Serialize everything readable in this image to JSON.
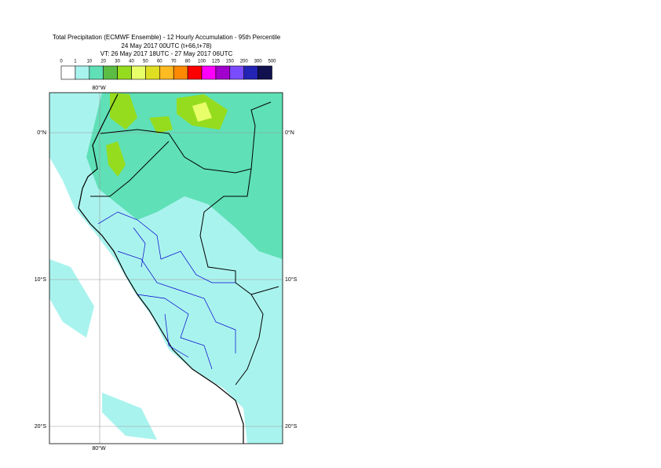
{
  "title": [
    "Total Precipitation (ECMWF Ensemble) - 12 Hourly Accumulation - 95th Percentile",
    "24 May 2017 00UTC (t+66,t+78)",
    "VT: 26 May 2017 18UTC - 27 May 2017 06UTC"
  ],
  "colorbar": {
    "labels": [
      "0",
      "1",
      "10",
      "20",
      "30",
      "40",
      "50",
      "60",
      "70",
      "80",
      "100",
      "125",
      "150",
      "200",
      "300",
      "500"
    ],
    "colors": [
      "#ffffff",
      "#a9f3ee",
      "#5fe0b7",
      "#5cbd45",
      "#96dc1e",
      "#e8ff6a",
      "#dede22",
      "#ffbb22",
      "#ff8a00",
      "#ff0000",
      "#ff00ff",
      "#a200cc",
      "#7a4cff",
      "#2323b5",
      "#11114f"
    ]
  },
  "map": {
    "lon_labels": [
      "80°W",
      "80°W"
    ],
    "lat_labels_left": [
      "0°N",
      "10°S",
      "20°S"
    ],
    "lat_labels_right": [
      "0°N",
      "10°S",
      "20°S"
    ]
  }
}
